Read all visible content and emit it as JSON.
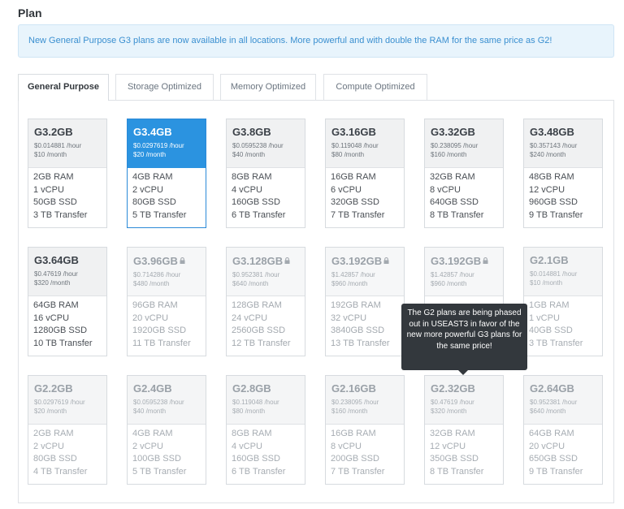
{
  "section_title": "Plan",
  "notice": "New General Purpose G3 plans are now available in all locations. More powerful and with double the RAM for the same price as G2!",
  "tabs": [
    "General Purpose",
    "Storage Optimized",
    "Memory Optimized",
    "Compute Optimized"
  ],
  "active_tab": "General Purpose",
  "colors": {
    "accent": "#2b93e0",
    "alert_text": "#3a8fd0",
    "tooltip_bg": "#33383d"
  },
  "plans": [
    {
      "name": "G3.2GB",
      "hourly": "$0.014881 /hour",
      "monthly": "$10 /month",
      "ram": "2GB RAM",
      "cpu": "1 vCPU",
      "ssd": "50GB SSD",
      "transfer": "3 TB Transfer"
    },
    {
      "name": "G3.4GB",
      "hourly": "$0.0297619 /hour",
      "monthly": "$20 /month",
      "ram": "4GB RAM",
      "cpu": "2 vCPU",
      "ssd": "80GB SSD",
      "transfer": "5 TB Transfer",
      "selected": true
    },
    {
      "name": "G3.8GB",
      "hourly": "$0.0595238 /hour",
      "monthly": "$40 /month",
      "ram": "8GB RAM",
      "cpu": "4 vCPU",
      "ssd": "160GB SSD",
      "transfer": "6 TB Transfer"
    },
    {
      "name": "G3.16GB",
      "hourly": "$0.119048 /hour",
      "monthly": "$80 /month",
      "ram": "16GB RAM",
      "cpu": "6 vCPU",
      "ssd": "320GB SSD",
      "transfer": "7 TB Transfer"
    },
    {
      "name": "G3.32GB",
      "hourly": "$0.238095 /hour",
      "monthly": "$160 /month",
      "ram": "32GB RAM",
      "cpu": "8 vCPU",
      "ssd": "640GB SSD",
      "transfer": "8 TB Transfer"
    },
    {
      "name": "G3.48GB",
      "hourly": "$0.357143 /hour",
      "monthly": "$240 /month",
      "ram": "48GB RAM",
      "cpu": "12 vCPU",
      "ssd": "960GB SSD",
      "transfer": "9 TB Transfer"
    },
    {
      "name": "G3.64GB",
      "hourly": "$0.47619 /hour",
      "monthly": "$320 /month",
      "ram": "64GB RAM",
      "cpu": "16 vCPU",
      "ssd": "1280GB SSD",
      "transfer": "10 TB Transfer"
    },
    {
      "name": "G3.96GB",
      "hourly": "$0.714286 /hour",
      "monthly": "$480 /month",
      "ram": "96GB RAM",
      "cpu": "20 vCPU",
      "ssd": "1920GB SSD",
      "transfer": "11 TB Transfer",
      "locked": true
    },
    {
      "name": "G3.128GB",
      "hourly": "$0.952381 /hour",
      "monthly": "$640 /month",
      "ram": "128GB RAM",
      "cpu": "24 vCPU",
      "ssd": "2560GB SSD",
      "transfer": "12 TB Transfer",
      "locked": true
    },
    {
      "name": "G3.192GB",
      "hourly": "$1.42857 /hour",
      "monthly": "$960 /month",
      "ram": "192GB RAM",
      "cpu": "32 vCPU",
      "ssd": "3840GB SSD",
      "transfer": "13 TB Transfer",
      "locked": true
    },
    {
      "name": "G3.192GB",
      "hourly": "$1.42857 /hour",
      "monthly": "$960 /month",
      "ram": "",
      "cpu": "",
      "ssd": "",
      "transfer": "",
      "locked": true
    },
    {
      "name": "G2.1GB",
      "hourly": "$0.014881 /hour",
      "monthly": "$10 /month",
      "ram": "1GB RAM",
      "cpu": "1 vCPU",
      "ssd": "40GB SSD",
      "transfer": "3 TB Transfer",
      "legacy": true
    },
    {
      "name": "G2.2GB",
      "hourly": "$0.0297619 /hour",
      "monthly": "$20 /month",
      "ram": "2GB RAM",
      "cpu": "2 vCPU",
      "ssd": "80GB SSD",
      "transfer": "4 TB Transfer",
      "legacy": true
    },
    {
      "name": "G2.4GB",
      "hourly": "$0.0595238 /hour",
      "monthly": "$40 /month",
      "ram": "4GB RAM",
      "cpu": "2 vCPU",
      "ssd": "100GB SSD",
      "transfer": "5 TB Transfer",
      "legacy": true
    },
    {
      "name": "G2.8GB",
      "hourly": "$0.119048 /hour",
      "monthly": "$80 /month",
      "ram": "8GB RAM",
      "cpu": "4 vCPU",
      "ssd": "160GB SSD",
      "transfer": "6 TB Transfer",
      "legacy": true
    },
    {
      "name": "G2.16GB",
      "hourly": "$0.238095 /hour",
      "monthly": "$160 /month",
      "ram": "16GB RAM",
      "cpu": "8 vCPU",
      "ssd": "200GB SSD",
      "transfer": "7 TB Transfer",
      "legacy": true
    },
    {
      "name": "G2.32GB",
      "hourly": "$0.47619 /hour",
      "monthly": "$320 /month",
      "ram": "32GB RAM",
      "cpu": "12 vCPU",
      "ssd": "350GB SSD",
      "transfer": "8 TB Transfer",
      "legacy": true
    },
    {
      "name": "G2.64GB",
      "hourly": "$0.952381 /hour",
      "monthly": "$640 /month",
      "ram": "64GB RAM",
      "cpu": "20 vCPU",
      "ssd": "650GB SSD",
      "transfer": "9 TB Transfer",
      "legacy": true
    }
  ],
  "tooltip": "The G2 plans are being phased out in USEAST3 in favor of the new more powerful G3 plans for the same price!"
}
